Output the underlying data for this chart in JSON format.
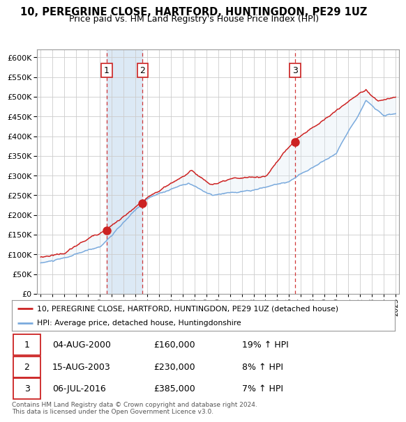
{
  "title": "10, PEREGRINE CLOSE, HARTFORD, HUNTINGDON, PE29 1UZ",
  "subtitle": "Price paid vs. HM Land Registry's House Price Index (HPI)",
  "xlim": [
    1994.7,
    2025.3
  ],
  "ylim": [
    0,
    620000
  ],
  "yticks": [
    0,
    50000,
    100000,
    150000,
    200000,
    250000,
    300000,
    350000,
    400000,
    450000,
    500000,
    550000,
    600000
  ],
  "sale_dates": [
    2000.58,
    2003.62,
    2016.5
  ],
  "sale_prices": [
    160000,
    230000,
    385000
  ],
  "sale_labels": [
    "1",
    "2",
    "3"
  ],
  "red_line_color": "#cc2222",
  "blue_line_color": "#7aaadd",
  "blue_fill_color": "#dce9f5",
  "dashed_line_color": "#cc2222",
  "grid_color": "#cccccc",
  "background_color": "#ffffff",
  "shade_region_color": "#dce9f5",
  "legend_entries": [
    "10, PEREGRINE CLOSE, HARTFORD, HUNTINGDON, PE29 1UZ (detached house)",
    "HPI: Average price, detached house, Huntingdonshire"
  ],
  "table_data": [
    [
      "1",
      "04-AUG-2000",
      "£160,000",
      "19% ↑ HPI"
    ],
    [
      "2",
      "15-AUG-2003",
      "£230,000",
      "8% ↑ HPI"
    ],
    [
      "3",
      "06-JUL-2016",
      "£385,000",
      "7% ↑ HPI"
    ]
  ],
  "footer": "Contains HM Land Registry data © Crown copyright and database right 2024.\nThis data is licensed under the Open Government Licence v3.0."
}
